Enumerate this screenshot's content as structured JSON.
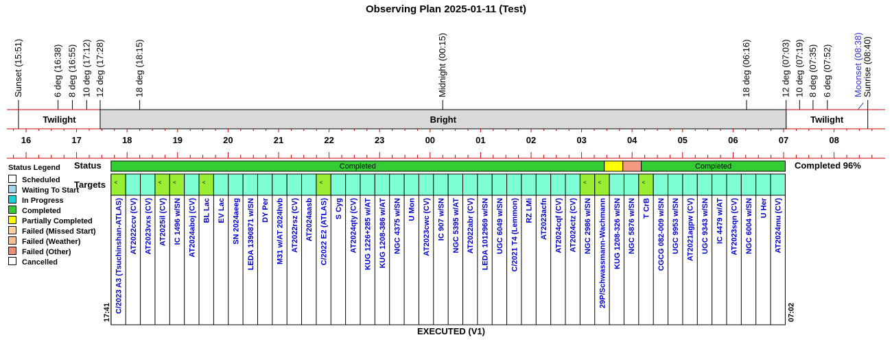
{
  "title": "Observing Plan 2025-01-11 (Test)",
  "footer": "EXECUTED (V1)",
  "status_label": "Status",
  "targets_label": "Targets",
  "completed_summary": "Completed 96%",
  "start_time": "17:41",
  "end_time": "07:02",
  "legend": {
    "title": "Status Legend",
    "items": [
      {
        "label": "Scheduled",
        "color": "#ffffff"
      },
      {
        "label": "Waiting To Start",
        "color": "#9fd8ec"
      },
      {
        "label": "In Progress",
        "color": "#20d0d8"
      },
      {
        "label": "Completed",
        "color": "#33cc33"
      },
      {
        "label": "Partially Completed",
        "color": "#ffff00"
      },
      {
        "label": "Failed (Missed Start)",
        "color": "#ffd0a0"
      },
      {
        "label": "Failed (Weather)",
        "color": "#f7c090"
      },
      {
        "label": "Failed (Other)",
        "color": "#f08a78"
      },
      {
        "label": "Cancelled",
        "color": "#ffffff"
      }
    ]
  },
  "colors": {
    "axis_red": "#cc0000",
    "bright_band": "#d9d9d9",
    "completed": "#33cc33",
    "partial": "#ffff00",
    "failed_other": "#f59a80",
    "target_cell": "#7fffd4",
    "target_completed": "#99ee33",
    "target_text": "#0000cc",
    "moon_text": "#3333cc"
  },
  "chart_data": {
    "type": "timeline",
    "time_axis": {
      "start_hour": 15.75,
      "end_hour": 32.75,
      "tick_labels": [
        "16",
        "17",
        "18",
        "19",
        "20",
        "21",
        "22",
        "23",
        "00",
        "01",
        "02",
        "03",
        "04",
        "05",
        "06",
        "07",
        "08"
      ],
      "tick_hours": [
        16,
        17,
        18,
        19,
        20,
        21,
        22,
        23,
        24,
        25,
        26,
        27,
        28,
        29,
        30,
        31,
        32
      ]
    },
    "events": [
      {
        "label": "Sunset (15:51)",
        "hour": 15.85,
        "tall": true
      },
      {
        "label": "6 deg (16:38)",
        "hour": 16.633
      },
      {
        "label": "8 deg (16:55)",
        "hour": 16.917
      },
      {
        "label": "10 deg (17:12)",
        "hour": 17.2
      },
      {
        "label": "12 deg (17:28)",
        "hour": 17.467,
        "tall": true
      },
      {
        "label": "18 deg (18:15)",
        "hour": 18.25
      },
      {
        "label": "Midnight (00:15)",
        "hour": 24.25
      },
      {
        "label": "18 deg (06:16)",
        "hour": 30.267
      },
      {
        "label": "12 deg (07:03)",
        "hour": 31.05,
        "tall": true
      },
      {
        "label": "10 deg (07:19)",
        "hour": 31.317
      },
      {
        "label": "8 deg (07:35)",
        "hour": 31.583
      },
      {
        "label": "6 deg (07:52)",
        "hour": 31.867
      },
      {
        "label": "Moonset (08:38)",
        "hour": 32.633,
        "moon": true
      },
      {
        "label": "Sunrise (08:40)",
        "hour": 32.667,
        "tall": true
      }
    ],
    "bands": [
      {
        "label": "Twilight",
        "start": 15.85,
        "end": 17.467,
        "type": "twilight"
      },
      {
        "label": "Bright",
        "start": 17.467,
        "end": 31.05,
        "type": "bright"
      },
      {
        "label": "Twilight",
        "start": 31.05,
        "end": 32.667,
        "type": "twilight"
      }
    ],
    "status_segments": [
      {
        "status": "completed",
        "label": "Completed",
        "start": 17.683,
        "end": 27.45
      },
      {
        "status": "partial",
        "label": "",
        "start": 27.45,
        "end": 27.817
      },
      {
        "status": "failed",
        "label": "",
        "start": 27.817,
        "end": 28.183
      },
      {
        "status": "completed",
        "label": "Completed",
        "start": 28.183,
        "end": 31.033
      }
    ],
    "targets": [
      {
        "name": "C/2023 A3 (Tsuchinshan-ATLAS)",
        "completed": true
      },
      {
        "name": "AT2022ccv (CV)",
        "completed": false
      },
      {
        "name": "AT2023vxs (CV)",
        "completed": false
      },
      {
        "name": "AT2025il (CV)",
        "completed": true
      },
      {
        "name": "IC 1496 w/SN",
        "completed": true
      },
      {
        "name": "AT2024aboj (CV)",
        "completed": false
      },
      {
        "name": "BL Lac",
        "completed": true
      },
      {
        "name": "EV Lac",
        "completed": false
      },
      {
        "name": "SN 2024aeeg",
        "completed": false
      },
      {
        "name": "LEDA 1390871 w/SN",
        "completed": false
      },
      {
        "name": "DY Per",
        "completed": false
      },
      {
        "name": "M31 w/AT 2024hvb",
        "completed": false
      },
      {
        "name": "AT2022rsz (CV)",
        "completed": false
      },
      {
        "name": "AT2024aasb",
        "completed": false
      },
      {
        "name": "C/2022 E2 (ATLAS)",
        "completed": true
      },
      {
        "name": "S Cyg",
        "completed": false
      },
      {
        "name": "AT2024qty (CV)",
        "completed": false
      },
      {
        "name": "KUG 1226+285 w/AT",
        "completed": false
      },
      {
        "name": "KUG 1208-386 w/AT",
        "completed": false
      },
      {
        "name": "NGC 4375 w/SN",
        "completed": false
      },
      {
        "name": "U Mon",
        "completed": false
      },
      {
        "name": "AT2023cwc (CV)",
        "completed": false
      },
      {
        "name": "IC 907 w/SN",
        "completed": false
      },
      {
        "name": "NGC 5395 w/AT",
        "completed": false
      },
      {
        "name": "AT2022abr (CV)",
        "completed": false
      },
      {
        "name": "LEDA 1012969 w/SN",
        "completed": false
      },
      {
        "name": "UGC 6049 w/SN",
        "completed": false
      },
      {
        "name": "C/2021 T4 (Lemmon)",
        "completed": false
      },
      {
        "name": "RZ LMi",
        "completed": false
      },
      {
        "name": "AT2023acfn",
        "completed": false
      },
      {
        "name": "AT2024cqf (CV)",
        "completed": false
      },
      {
        "name": "AT2024ctz (CV)",
        "completed": false
      },
      {
        "name": "NGC 2986 w/SN",
        "completed": true
      },
      {
        "name": "29P/Schwassmann-Wachmann",
        "completed": true
      },
      {
        "name": "KUG 1208-326 w/SN",
        "completed": false
      },
      {
        "name": "NGC 5876 w/SN",
        "completed": false
      },
      {
        "name": "T CrB",
        "completed": true
      },
      {
        "name": "CGCG 082-009 w/SN",
        "completed": false
      },
      {
        "name": "UGC 9953 w/SN",
        "completed": false
      },
      {
        "name": "AT2021agpw (CV)",
        "completed": false
      },
      {
        "name": "UGC 9343 w/SN",
        "completed": false
      },
      {
        "name": "IC 4479 w/AT",
        "completed": false
      },
      {
        "name": "AT2023sqn (CV)",
        "completed": false
      },
      {
        "name": "NGC 6004 w/SN",
        "completed": false
      },
      {
        "name": "U Her",
        "completed": false
      },
      {
        "name": "AT2024mu (CV)",
        "completed": false
      }
    ],
    "completed_marker": "<"
  }
}
